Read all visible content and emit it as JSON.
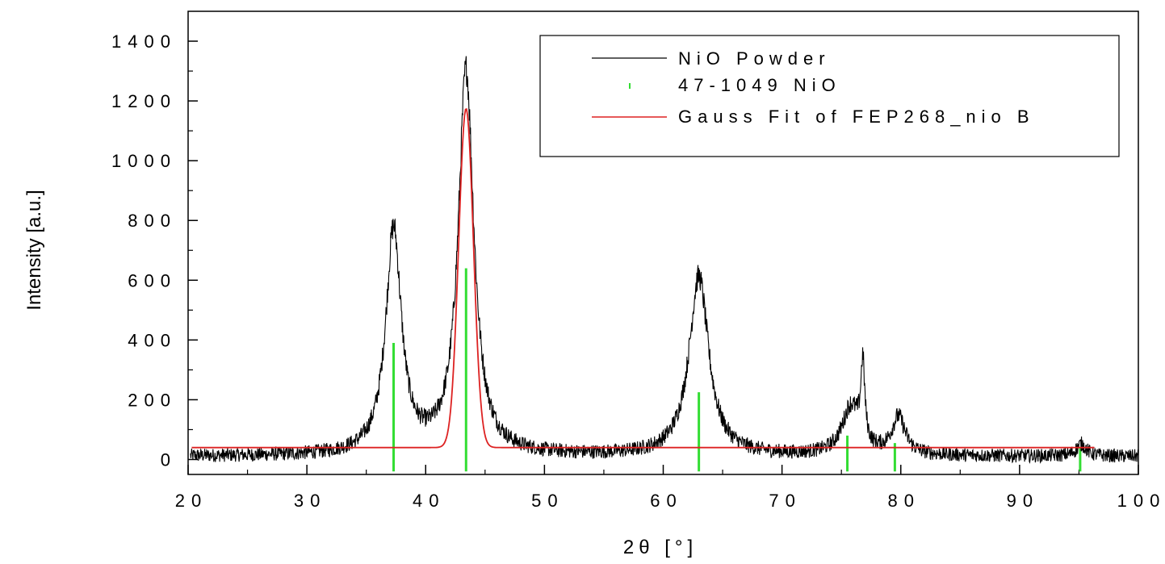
{
  "chart_data": {
    "type": "line",
    "xlabel": "2θ [°]",
    "ylabel": "Intensity [a.u.]",
    "xlim": [
      20,
      100
    ],
    "ylim": [
      -50,
      1500
    ],
    "x_ticks": [
      "20",
      "30",
      "40",
      "50",
      "60",
      "70",
      "80",
      "90",
      "100"
    ],
    "y_ticks": [
      "0",
      "200",
      "400",
      "600",
      "800",
      "1000",
      "1200",
      "1400"
    ],
    "legend": {
      "placement": "top-right",
      "entries": [
        "NiO Powder",
        "47-1049 NiO",
        "Gauss Fit of FEP268_nio B"
      ]
    },
    "series": [
      {
        "name": "NiO Powder",
        "style": "noisy-line",
        "color": "#000000",
        "baseline": 10,
        "noise": 28,
        "peaks": [
          {
            "x": 37.3,
            "height": 750,
            "width": 0.8
          },
          {
            "x": 43.4,
            "height": 1285,
            "width": 0.8
          },
          {
            "x": 63.0,
            "height": 600,
            "width": 1.0
          },
          {
            "x": 75.8,
            "height": 160,
            "width": 0.9
          },
          {
            "x": 76.8,
            "height": 260,
            "width": 0.2
          },
          {
            "x": 79.8,
            "height": 125,
            "width": 0.7
          },
          {
            "x": 95.2,
            "height": 40,
            "width": 0.5
          }
        ]
      },
      {
        "name": "47-1049 NiO",
        "style": "sticks",
        "color": "#33dd33",
        "x": [
          37.3,
          43.4,
          63.0,
          75.5,
          79.5,
          95.1
        ],
        "values": [
          390,
          640,
          225,
          80,
          55,
          40
        ]
      },
      {
        "name": "Gauss Fit of FEP268_nio B",
        "style": "line",
        "color": "#dd2222",
        "x_range": [
          20.3,
          96.3
        ],
        "baseline": 40,
        "peak": {
          "x": 43.4,
          "height": 1135,
          "sigma": 0.62
        }
      }
    ]
  }
}
